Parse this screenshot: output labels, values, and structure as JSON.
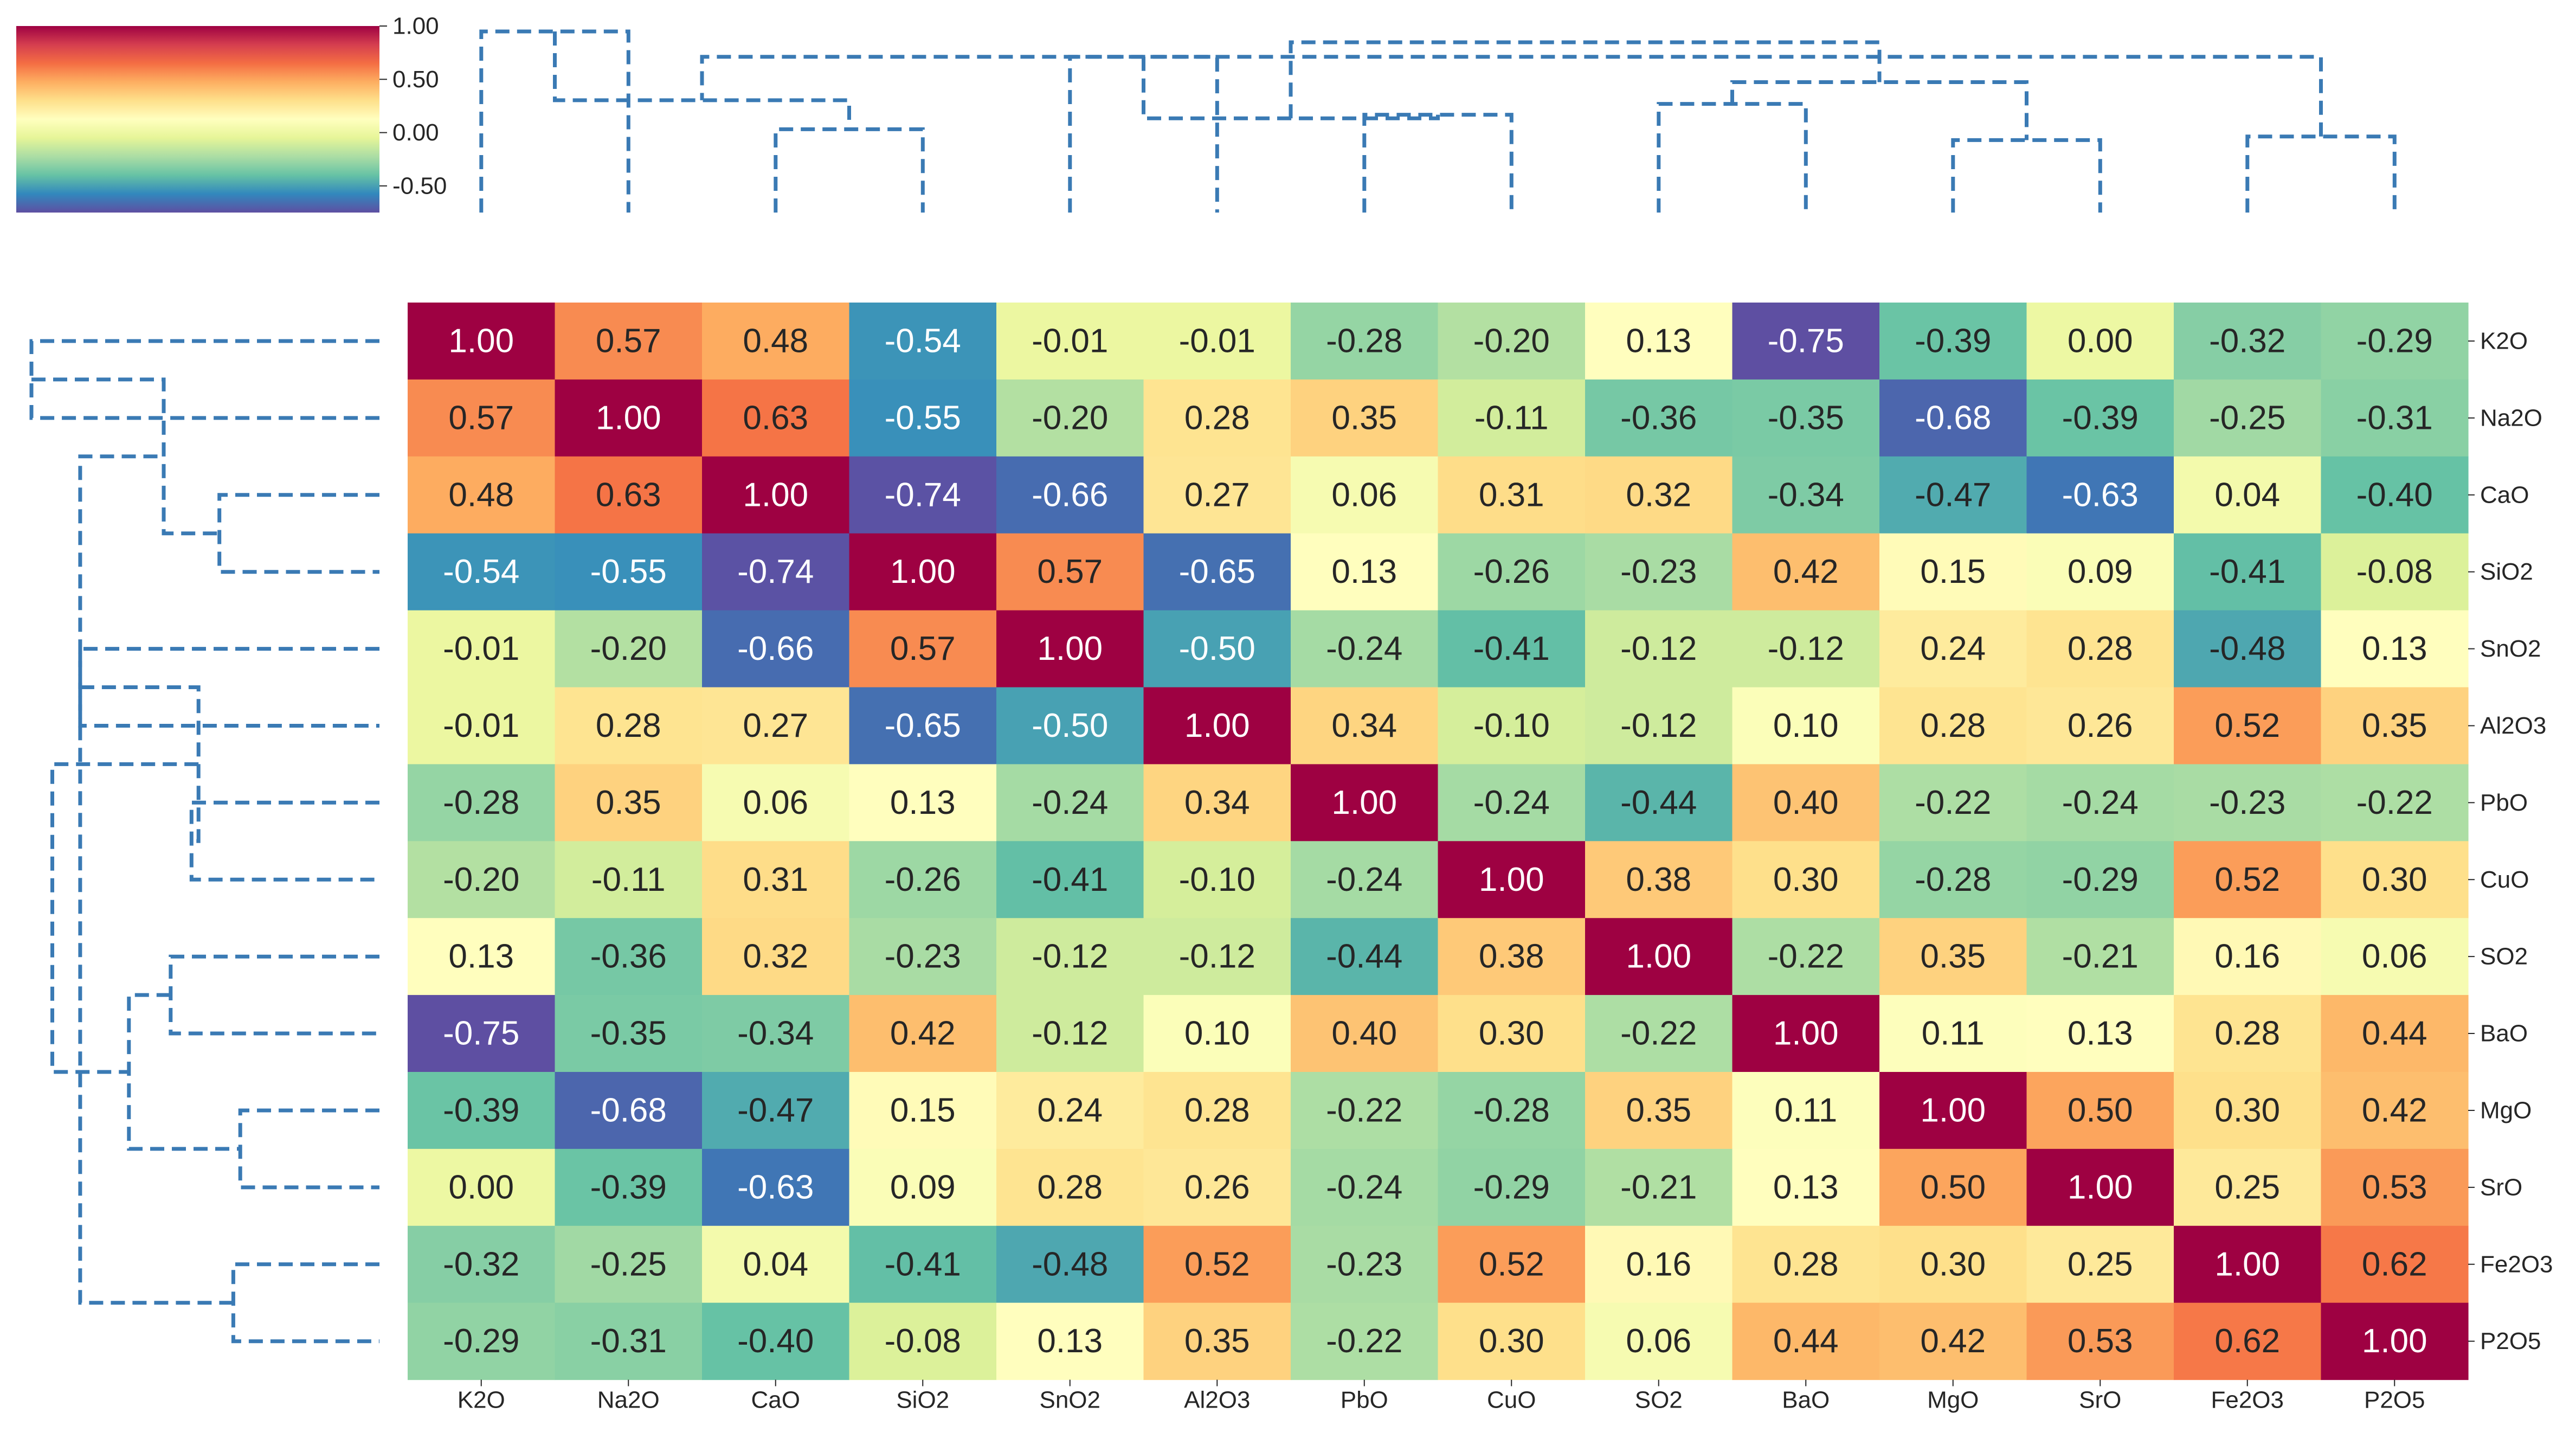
{
  "chart_data": {
    "type": "heatmap",
    "title": "",
    "row_labels": [
      "K2O",
      "Na2O",
      "CaO",
      "SiO2",
      "SnO2",
      "Al2O3",
      "PbO",
      "CuO",
      "SO2",
      "BaO",
      "MgO",
      "SrO",
      "Fe2O3",
      "P2O5"
    ],
    "col_labels": [
      "K2O",
      "Na2O",
      "CaO",
      "SiO2",
      "SnO2",
      "Al2O3",
      "PbO",
      "CuO",
      "SO2",
      "BaO",
      "MgO",
      "SrO",
      "Fe2O3",
      "P2O5"
    ],
    "values": [
      [
        1.0,
        0.57,
        0.48,
        -0.54,
        -0.01,
        -0.01,
        -0.28,
        -0.2,
        0.13,
        -0.75,
        -0.39,
        0.0,
        -0.32,
        -0.29
      ],
      [
        0.57,
        1.0,
        0.63,
        -0.55,
        -0.2,
        0.28,
        0.35,
        -0.11,
        -0.36,
        -0.35,
        -0.68,
        -0.39,
        -0.25,
        -0.31
      ],
      [
        0.48,
        0.63,
        1.0,
        -0.74,
        -0.66,
        0.27,
        0.06,
        0.31,
        0.32,
        -0.34,
        -0.47,
        -0.63,
        0.04,
        -0.4
      ],
      [
        -0.54,
        -0.55,
        -0.74,
        1.0,
        0.57,
        -0.65,
        0.13,
        -0.26,
        -0.23,
        0.42,
        0.15,
        0.09,
        -0.41,
        -0.08
      ],
      [
        -0.01,
        -0.2,
        -0.66,
        0.57,
        1.0,
        -0.5,
        -0.24,
        -0.41,
        -0.12,
        -0.12,
        0.24,
        0.28,
        -0.48,
        0.13
      ],
      [
        -0.01,
        0.28,
        0.27,
        -0.65,
        -0.5,
        1.0,
        0.34,
        -0.1,
        -0.12,
        0.1,
        0.28,
        0.26,
        0.52,
        0.35
      ],
      [
        -0.28,
        0.35,
        0.06,
        0.13,
        -0.24,
        0.34,
        1.0,
        -0.24,
        -0.44,
        0.4,
        -0.22,
        -0.24,
        -0.23,
        -0.22
      ],
      [
        -0.2,
        -0.11,
        0.31,
        -0.26,
        -0.41,
        -0.1,
        -0.24,
        1.0,
        0.38,
        0.3,
        -0.28,
        -0.29,
        0.52,
        0.3
      ],
      [
        0.13,
        -0.36,
        0.32,
        -0.23,
        -0.12,
        -0.12,
        -0.44,
        0.38,
        1.0,
        -0.22,
        0.35,
        -0.21,
        0.16,
        0.06
      ],
      [
        -0.75,
        -0.35,
        -0.34,
        0.42,
        -0.12,
        0.1,
        0.4,
        0.3,
        -0.22,
        1.0,
        0.11,
        0.13,
        0.28,
        0.44
      ],
      [
        -0.39,
        -0.68,
        -0.47,
        0.15,
        0.24,
        0.28,
        -0.22,
        -0.28,
        0.35,
        0.11,
        1.0,
        0.5,
        0.3,
        0.42
      ],
      [
        0.0,
        -0.39,
        -0.63,
        0.09,
        0.28,
        0.26,
        -0.24,
        -0.29,
        -0.21,
        0.13,
        0.5,
        1.0,
        0.25,
        0.53
      ],
      [
        -0.32,
        -0.25,
        0.04,
        -0.41,
        -0.48,
        0.52,
        -0.23,
        0.52,
        0.16,
        0.28,
        0.3,
        0.25,
        1.0,
        0.62
      ],
      [
        -0.29,
        -0.31,
        -0.4,
        -0.08,
        0.13,
        0.35,
        -0.22,
        0.3,
        0.06,
        0.44,
        0.42,
        0.53,
        0.62,
        1.0
      ]
    ],
    "value_range": [
      -0.75,
      1.0
    ],
    "colormap": "Spectral_r",
    "colorbar_ticks": [
      "1.00",
      "0.50",
      "0.00",
      "-0.50"
    ],
    "dendrogram": {
      "leaf_order": [
        "K2O",
        "Na2O",
        "CaO",
        "SiO2",
        "SnO2",
        "Al2O3",
        "PbO",
        "CuO",
        "SO2",
        "BaO",
        "MgO",
        "SrO",
        "Fe2O3",
        "P2O5"
      ],
      "merges": [
        [
          0,
          1,
          4,
          1.0
        ],
        [
          2,
          3,
          4,
          0.46
        ],
        [
          4,
          5,
          1,
          0.86
        ],
        [
          6,
          7,
          4,
          0.54
        ],
        [
          8,
          9,
          4,
          0.6
        ],
        [
          10,
          11,
          5,
          0.4
        ],
        [
          12,
          13,
          5,
          0.42
        ],
        [
          14,
          15,
          8,
          0.62
        ],
        [
          16,
          17,
          2,
          0.52
        ],
        [
          18,
          19,
          10,
          0.72
        ],
        [
          20,
          21,
          13,
          0.86
        ],
        [
          22,
          23,
          14,
          0.94
        ]
      ],
      "line_color": "#3a7ab4",
      "line_style": "dashed"
    }
  }
}
